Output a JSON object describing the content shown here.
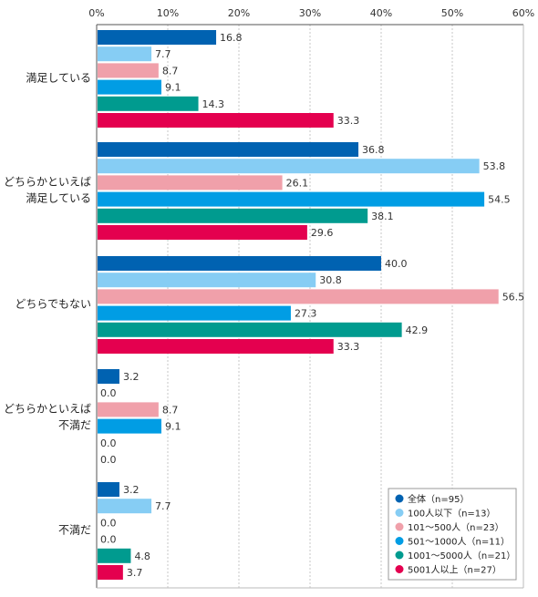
{
  "chart_data": {
    "type": "bar",
    "orientation": "horizontal",
    "categories": [
      [
        "満足している"
      ],
      [
        "どちらかといえば",
        "満足している"
      ],
      [
        "どちらでもない"
      ],
      [
        "どちらかといえば",
        "不満だ"
      ],
      [
        "不満だ"
      ]
    ],
    "series": [
      {
        "name": "全体（n=95）",
        "color": "#0062b1",
        "values": [
          16.8,
          36.8,
          40.0,
          3.2,
          3.2
        ]
      },
      {
        "name": "100人以下（n=13）",
        "color": "#86cdf4",
        "values": [
          7.7,
          53.8,
          30.8,
          0.0,
          7.7
        ]
      },
      {
        "name": "101～500人（n=23）",
        "color": "#f0a0aa",
        "values": [
          8.7,
          26.1,
          56.5,
          8.7,
          0.0
        ]
      },
      {
        "name": "501～1000人（n=11）",
        "color": "#019de4",
        "values": [
          9.1,
          54.5,
          27.3,
          9.1,
          0.0
        ]
      },
      {
        "name": "1001～5000人（n=21）",
        "color": "#009b8f",
        "values": [
          14.3,
          38.1,
          42.9,
          0.0,
          4.8
        ]
      },
      {
        "name": "5001人以上（n=27）",
        "color": "#e4004f",
        "values": [
          33.3,
          29.6,
          33.3,
          0.0,
          3.7
        ]
      }
    ],
    "xlim": [
      0,
      60
    ],
    "ticks": [
      0,
      10,
      20,
      30,
      40,
      50,
      60
    ],
    "tick_labels": [
      "0%",
      "10%",
      "20%",
      "30%",
      "40%",
      "50%",
      "60%"
    ],
    "grid": true,
    "legend_position": "bottom-right"
  }
}
